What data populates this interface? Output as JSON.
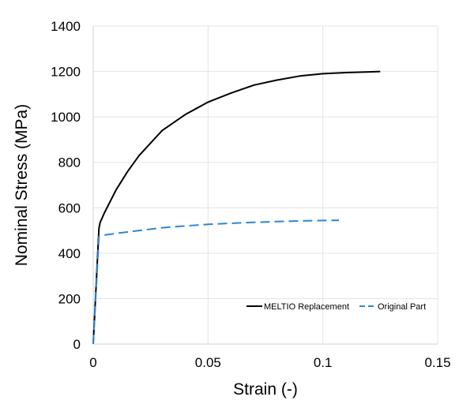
{
  "chart_data": {
    "type": "line",
    "xlabel": "Strain (-)",
    "ylabel": "Nominal Stress (MPa)",
    "xlim": [
      0,
      0.15
    ],
    "ylim": [
      0,
      1400
    ],
    "xticks": [
      0,
      0.05,
      0.1,
      0.15
    ],
    "xtick_labels": [
      "0",
      "0.05",
      "0.1",
      "0.15"
    ],
    "yticks": [
      0,
      200,
      400,
      600,
      800,
      1000,
      1200,
      1400
    ],
    "ytick_labels": [
      "0",
      "200",
      "400",
      "600",
      "800",
      "1000",
      "1200",
      "1400"
    ],
    "grid": true,
    "legend_position": "bottom-right",
    "series": [
      {
        "name": "MELTIO Replacement",
        "color": "#000000",
        "dash": "solid",
        "x": [
          0,
          0.0025,
          0.003,
          0.005,
          0.01,
          0.015,
          0.02,
          0.03,
          0.04,
          0.05,
          0.06,
          0.07,
          0.08,
          0.09,
          0.1,
          0.11,
          0.12,
          0.125
        ],
        "y": [
          0,
          510,
          535,
          580,
          680,
          760,
          830,
          940,
          1010,
          1065,
          1105,
          1140,
          1162,
          1180,
          1190,
          1195,
          1198,
          1200
        ]
      },
      {
        "name": "Original Part",
        "color": "#2e86d0",
        "dash": "dashed",
        "x": [
          0,
          0.0025,
          0.005,
          0.01,
          0.02,
          0.03,
          0.04,
          0.05,
          0.06,
          0.07,
          0.08,
          0.09,
          0.1,
          0.107
        ],
        "y": [
          0,
          475,
          480,
          487,
          500,
          512,
          520,
          527,
          532,
          536,
          539,
          542,
          544,
          545
        ]
      }
    ]
  }
}
